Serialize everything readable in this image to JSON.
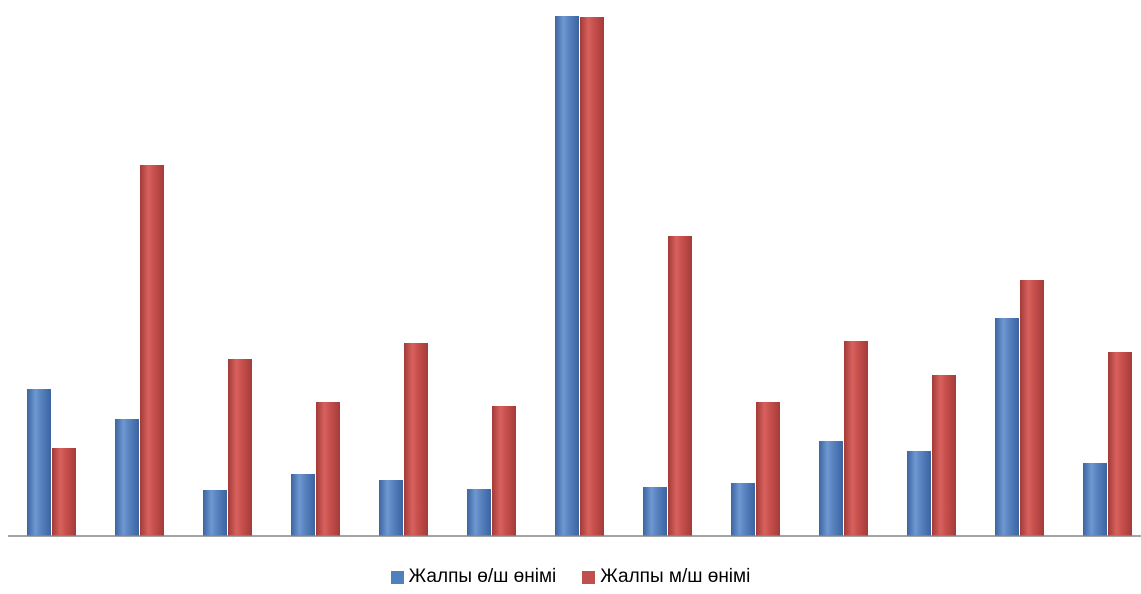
{
  "chart_data": {
    "type": "bar",
    "categories": [
      "",
      "",
      "",
      "",
      "",
      "",
      "",
      "",
      "",
      "",
      "",
      "",
      ""
    ],
    "series": [
      {
        "name": "Жалпы ө/ш өнімі",
        "color": "#4F81BD",
        "values": [
          147,
          117,
          46,
          62,
          56,
          47,
          520,
          49,
          53,
          95,
          85,
          218,
          73
        ]
      },
      {
        "name": "Жалпы м/ш өнімі",
        "color": "#C0504D",
        "values": [
          88,
          371,
          177,
          134,
          193,
          130,
          519,
          300,
          134,
          195,
          161,
          256,
          184
        ]
      }
    ],
    "ylim": [
      0,
      520
    ],
    "grid": false,
    "legend": "bottom"
  }
}
